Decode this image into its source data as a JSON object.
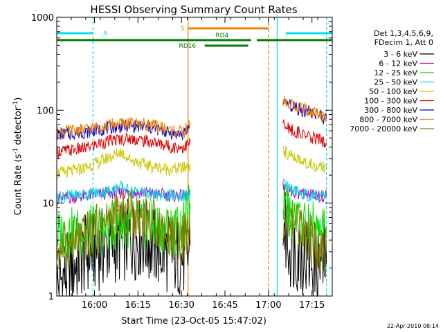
{
  "chart_data": {
    "type": "line",
    "title": "HESSI Observing Summary Count Rates",
    "xlabel": "Start Time (23-Oct-05 15:47:02)",
    "ylabel": "Count Rate (s⁻¹ detector⁻¹)",
    "x_min_minutes_after_1547_02": 0,
    "x_max_minutes_after_1547_02": 95,
    "x_ticks": [
      {
        "label": "16:00",
        "minute": 13
      },
      {
        "label": "16:15",
        "minute": 28
      },
      {
        "label": "16:30",
        "minute": 43
      },
      {
        "label": "16:45",
        "minute": 58
      },
      {
        "label": "17:00",
        "minute": 73
      },
      {
        "label": "17:15",
        "minute": 88
      }
    ],
    "y_scale": "log",
    "ylim": [
      1,
      1000
    ],
    "y_ticks": [
      "1",
      "10",
      "100",
      "1000"
    ],
    "legend_header": [
      "Det 1,3,4,5,6,9,",
      "FDecim 1, Att 0"
    ],
    "series": [
      {
        "name": "3 - 6 keV",
        "color": "#000000",
        "points": [
          [
            0,
            1.3
          ],
          [
            5,
            2
          ],
          [
            10,
            2.8
          ],
          [
            15,
            3.2
          ],
          [
            20,
            3.6
          ],
          [
            25,
            4
          ],
          [
            30,
            4.2
          ],
          [
            35,
            3.2
          ],
          [
            40,
            2.8
          ],
          [
            45,
            2.5
          ],
          [
            46,
            3.5
          ],
          [
            78,
            6
          ],
          [
            80,
            3.5
          ],
          [
            85,
            2.8
          ],
          [
            90,
            2.3
          ],
          [
            93,
            2.2
          ]
        ]
      },
      {
        "name": "6 - 12 keV",
        "color": "#c000c0",
        "points": [
          [
            0,
            11
          ],
          [
            5,
            11.5
          ],
          [
            10,
            12
          ],
          [
            15,
            12.5
          ],
          [
            20,
            13
          ],
          [
            25,
            13
          ],
          [
            30,
            13
          ],
          [
            35,
            12.5
          ],
          [
            40,
            12
          ],
          [
            44,
            12
          ],
          [
            46,
            12
          ],
          [
            78,
            15
          ],
          [
            80,
            13.5
          ],
          [
            85,
            12.5
          ],
          [
            90,
            12
          ],
          [
            93,
            12
          ]
        ]
      },
      {
        "name": "12 - 25 keV",
        "color": "#00e000",
        "points": [
          [
            0,
            4.5
          ],
          [
            5,
            4.8
          ],
          [
            10,
            5
          ],
          [
            15,
            5.3
          ],
          [
            20,
            5.8
          ],
          [
            25,
            6
          ],
          [
            30,
            5.8
          ],
          [
            35,
            5.5
          ],
          [
            40,
            5
          ],
          [
            44,
            5.5
          ],
          [
            45,
            8
          ],
          [
            46,
            10
          ],
          [
            78,
            9.5
          ],
          [
            80,
            8
          ],
          [
            85,
            6
          ],
          [
            90,
            5.5
          ],
          [
            93,
            5.5
          ]
        ]
      },
      {
        "name": "25 - 50 keV",
        "color": "#00d8e8",
        "points": [
          [
            0,
            11.5
          ],
          [
            5,
            12
          ],
          [
            10,
            12.5
          ],
          [
            15,
            13
          ],
          [
            20,
            14
          ],
          [
            22,
            15
          ],
          [
            25,
            13.5
          ],
          [
            30,
            13
          ],
          [
            35,
            12
          ],
          [
            40,
            12
          ],
          [
            44,
            12
          ],
          [
            46,
            12
          ],
          [
            78,
            16
          ],
          [
            80,
            14
          ],
          [
            85,
            12.5
          ],
          [
            90,
            12
          ],
          [
            93,
            12
          ]
        ]
      },
      {
        "name": "50 - 100 keV",
        "color": "#c8c800",
        "points": [
          [
            0,
            21
          ],
          [
            5,
            22
          ],
          [
            10,
            24
          ],
          [
            15,
            28
          ],
          [
            20,
            33
          ],
          [
            22,
            36
          ],
          [
            25,
            30
          ],
          [
            30,
            26
          ],
          [
            35,
            24
          ],
          [
            40,
            23
          ],
          [
            44,
            24
          ],
          [
            46,
            26
          ],
          [
            78,
            36
          ],
          [
            80,
            33
          ],
          [
            85,
            28
          ],
          [
            90,
            25
          ],
          [
            93,
            24
          ]
        ]
      },
      {
        "name": "100 - 300 keV",
        "color": "#e00000",
        "points": [
          [
            0,
            36
          ],
          [
            5,
            37
          ],
          [
            10,
            39
          ],
          [
            15,
            44
          ],
          [
            20,
            48
          ],
          [
            25,
            50
          ],
          [
            30,
            47
          ],
          [
            35,
            44
          ],
          [
            40,
            40
          ],
          [
            44,
            40
          ],
          [
            46,
            45
          ],
          [
            78,
            70
          ],
          [
            80,
            63
          ],
          [
            85,
            55
          ],
          [
            90,
            48
          ],
          [
            93,
            45
          ]
        ]
      },
      {
        "name": "300 - 800 keV",
        "color": "#0000d0",
        "points": [
          [
            0,
            55
          ],
          [
            5,
            56
          ],
          [
            10,
            58
          ],
          [
            15,
            62
          ],
          [
            20,
            66
          ],
          [
            25,
            68
          ],
          [
            30,
            66
          ],
          [
            35,
            62
          ],
          [
            40,
            56
          ],
          [
            44,
            55
          ],
          [
            46,
            70
          ],
          [
            78,
            120
          ],
          [
            80,
            112
          ],
          [
            85,
            100
          ],
          [
            90,
            88
          ],
          [
            93,
            80
          ]
        ]
      },
      {
        "name": "800 - 7000 keV",
        "color": "#f08000",
        "points": [
          [
            0,
            58
          ],
          [
            5,
            60
          ],
          [
            10,
            62
          ],
          [
            15,
            67
          ],
          [
            20,
            71
          ],
          [
            25,
            73
          ],
          [
            30,
            71
          ],
          [
            35,
            67
          ],
          [
            40,
            60
          ],
          [
            44,
            58
          ],
          [
            46,
            75
          ],
          [
            78,
            125
          ],
          [
            80,
            117
          ],
          [
            85,
            103
          ],
          [
            90,
            90
          ],
          [
            93,
            82
          ]
        ]
      },
      {
        "name": "7000 - 20000 keV",
        "color": "#808000",
        "points": [
          [
            0,
            3.2
          ],
          [
            5,
            3.6
          ],
          [
            10,
            4.3
          ],
          [
            15,
            5.5
          ],
          [
            20,
            7
          ],
          [
            25,
            7.8
          ],
          [
            30,
            7.2
          ],
          [
            35,
            5.8
          ],
          [
            40,
            4.5
          ],
          [
            44,
            4.2
          ],
          [
            46,
            4.8
          ],
          [
            78,
            7.5
          ],
          [
            80,
            6
          ],
          [
            85,
            4.5
          ],
          [
            90,
            3.5
          ],
          [
            93,
            3
          ]
        ]
      }
    ],
    "flags": [
      {
        "label": "N",
        "color": "#00e0f0",
        "segments": [
          [
            0,
            12.5
          ],
          [
            79,
            95
          ]
        ]
      },
      {
        "label": "S",
        "color": "#f08000",
        "segments": [
          [
            45.5,
            73
          ]
        ]
      },
      {
        "label": "RD4",
        "color": "#007800",
        "segments": [
          [
            0,
            67
          ],
          [
            69,
            95
          ]
        ]
      },
      {
        "label": "RD16",
        "color": "#007800",
        "segments": [
          [
            51,
            66
          ]
        ]
      }
    ],
    "grid": false,
    "legend_position": "right"
  },
  "footer_stamp": "22-Apr-2010 08:14"
}
